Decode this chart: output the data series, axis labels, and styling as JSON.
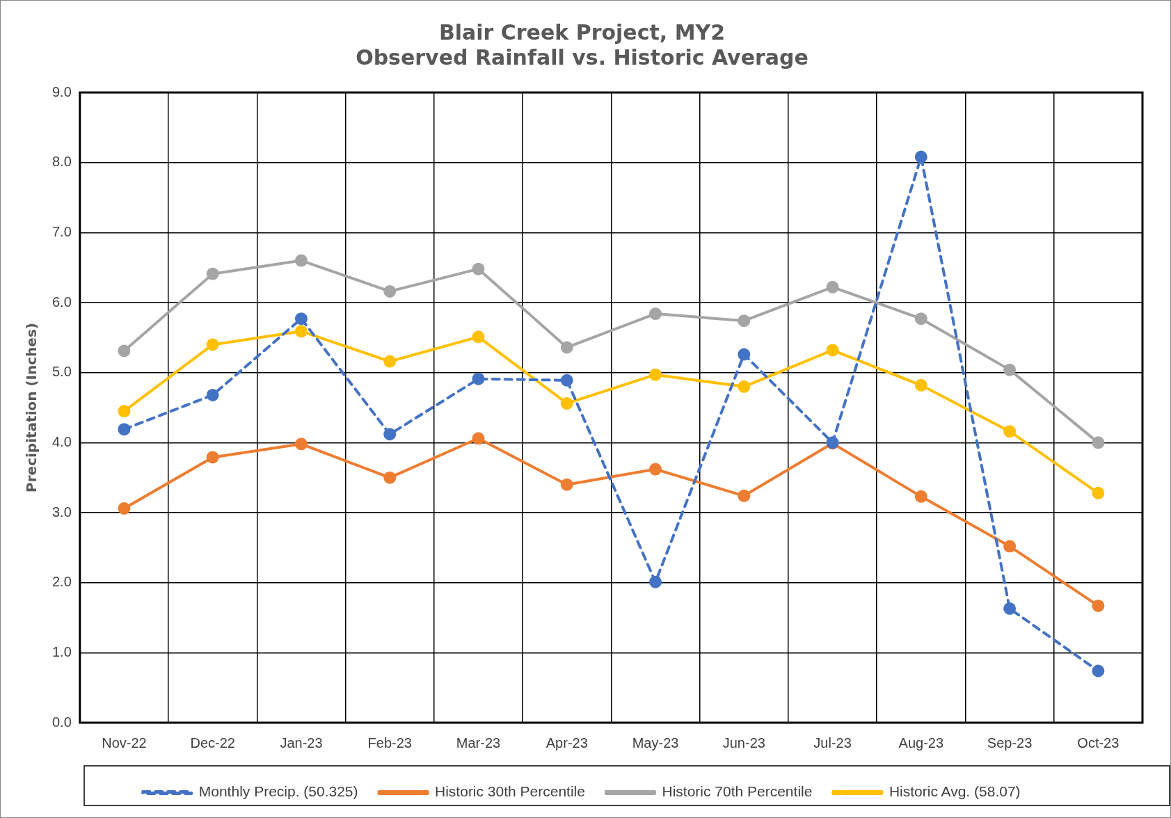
{
  "chart_data": {
    "type": "line",
    "title": [
      "Blair Creek Project, MY2",
      "Observed Rainfall vs. Historic Average"
    ],
    "ylabel": "Precipitation (Inches)",
    "categories": [
      "Nov-22",
      "Dec-22",
      "Jan-23",
      "Feb-23",
      "Mar-23",
      "Apr-23",
      "May-23",
      "Jun-23",
      "Jul-23",
      "Aug-23",
      "Sep-23",
      "Oct-23"
    ],
    "series": [
      {
        "name": "Monthly Precip. (50.325)",
        "color": "#4472c4",
        "line_style": "dashed",
        "values": [
          4.19,
          4.68,
          5.77,
          4.12,
          4.91,
          4.89,
          2.01,
          5.26,
          4.0,
          8.08,
          1.63,
          0.74
        ]
      },
      {
        "name": "Historic 30th Percentile",
        "color": "#ed7d31",
        "line_style": "solid",
        "values": [
          3.06,
          3.79,
          3.98,
          3.5,
          4.06,
          3.4,
          3.62,
          3.24,
          3.99,
          3.23,
          2.52,
          1.67
        ]
      },
      {
        "name": "Historic 70th Percentile",
        "color": "#a5a5a5",
        "line_style": "solid",
        "values": [
          5.31,
          6.41,
          6.6,
          6.16,
          6.48,
          5.36,
          5.84,
          5.74,
          6.22,
          5.77,
          5.04,
          4.0
        ]
      },
      {
        "name": "Historic Avg. (58.07)",
        "color": "#ffc000",
        "line_style": "solid",
        "values": [
          4.45,
          5.4,
          5.59,
          5.16,
          5.51,
          4.56,
          4.97,
          4.8,
          5.32,
          4.82,
          4.16,
          3.28
        ]
      }
    ],
    "ylim": [
      0,
      9
    ],
    "yticks": [
      {
        "value": 0,
        "label": "0.0"
      },
      {
        "value": 1,
        "label": "1.0"
      },
      {
        "value": 2,
        "label": "2.0"
      },
      {
        "value": 3,
        "label": "3.0"
      },
      {
        "value": 4,
        "label": "4.0"
      },
      {
        "value": 5,
        "label": "5.0"
      },
      {
        "value": 6,
        "label": "6.0"
      },
      {
        "value": 7,
        "label": "7.0"
      },
      {
        "value": 8,
        "label": "8.0"
      },
      {
        "value": 9,
        "label": "9.0"
      }
    ],
    "grid": true,
    "legend": "bottom",
    "marker": "circle"
  }
}
